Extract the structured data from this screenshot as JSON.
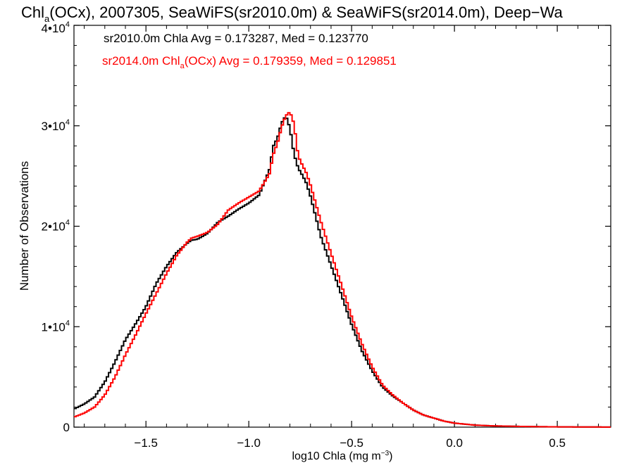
{
  "chart_data": {
    "type": "line",
    "title": {
      "pre": "Chl",
      "sub": "a",
      "post": "(OCx), 2007305, SeaWiFS(sr2010.0m) & SeaWiFS(sr2014.0m), Deep−Wa"
    },
    "xlabel": {
      "pre": "log10 Chla (mg m",
      "sup": "−3",
      "post": ")"
    },
    "ylabel": "Number of Observations",
    "xlim": [
      -1.85,
      0.76
    ],
    "ylim": [
      0,
      40000
    ],
    "x_ticks": [
      {
        "value": -1.5,
        "label": "−1.5"
      },
      {
        "value": -1.0,
        "label": "−1.0"
      },
      {
        "value": -0.5,
        "label": "−0.5"
      },
      {
        "value": 0.0,
        "label": "0.0"
      },
      {
        "value": 0.5,
        "label": "0.5"
      }
    ],
    "y_ticks": [
      {
        "value": 0,
        "base": "0",
        "exp": ""
      },
      {
        "value": 10000,
        "base": "1•10",
        "exp": "4"
      },
      {
        "value": 20000,
        "base": "2•10",
        "exp": "4"
      },
      {
        "value": 30000,
        "base": "3•10",
        "exp": "4"
      },
      {
        "value": 40000,
        "base": "4•10",
        "exp": "4"
      }
    ],
    "grid": false,
    "legend": [
      {
        "text": "sr2010.0m Chla Avg = 0.173287, Med = 0.123770",
        "color": "#000000"
      },
      {
        "pre": "sr2014.0m Chl",
        "sub": "a",
        "post": "(OCx) Avg = 0.179359, Med = 0.129851",
        "color": "#ff0000"
      }
    ],
    "series": [
      {
        "color": "#000000",
        "step": true,
        "x": [
          -1.85,
          -1.8,
          -1.75,
          -1.7,
          -1.65,
          -1.6,
          -1.55,
          -1.5,
          -1.45,
          -1.4,
          -1.35,
          -1.3,
          -1.28,
          -1.25,
          -1.2,
          -1.15,
          -1.1,
          -1.05,
          -1.0,
          -0.95,
          -0.9,
          -0.88,
          -0.86,
          -0.84,
          -0.82,
          -0.8,
          -0.78,
          -0.76,
          -0.74,
          -0.72,
          -0.7,
          -0.65,
          -0.6,
          -0.55,
          -0.5,
          -0.45,
          -0.4,
          -0.35,
          -0.3,
          -0.25,
          -0.2,
          -0.15,
          -0.1,
          -0.05,
          0.0,
          0.05,
          0.1,
          0.2,
          0.3,
          0.4,
          0.5,
          0.6,
          0.76
        ],
        "y": [
          1800,
          2300,
          3000,
          4500,
          6500,
          8700,
          10300,
          12000,
          14300,
          16000,
          17400,
          18300,
          18600,
          18700,
          19300,
          20400,
          21000,
          21700,
          22300,
          23100,
          25600,
          28000,
          28800,
          30300,
          31000,
          29800,
          27200,
          25800,
          25100,
          24300,
          23000,
          19000,
          16100,
          13200,
          10200,
          7600,
          5600,
          4000,
          3100,
          2400,
          1700,
          1200,
          900,
          600,
          400,
          300,
          200,
          120,
          80,
          50,
          30,
          20,
          10
        ]
      },
      {
        "color": "#ff0000",
        "step": true,
        "x": [
          -1.85,
          -1.8,
          -1.75,
          -1.7,
          -1.65,
          -1.6,
          -1.55,
          -1.5,
          -1.45,
          -1.4,
          -1.35,
          -1.3,
          -1.28,
          -1.25,
          -1.2,
          -1.15,
          -1.1,
          -1.05,
          -1.0,
          -0.95,
          -0.9,
          -0.88,
          -0.86,
          -0.84,
          -0.82,
          -0.8,
          -0.78,
          -0.76,
          -0.74,
          -0.72,
          -0.7,
          -0.65,
          -0.6,
          -0.55,
          -0.5,
          -0.45,
          -0.4,
          -0.35,
          -0.3,
          -0.25,
          -0.2,
          -0.15,
          -0.1,
          -0.05,
          0.0,
          0.05,
          0.1,
          0.2,
          0.3,
          0.4,
          0.5,
          0.6,
          0.76
        ],
        "y": [
          1000,
          1400,
          2000,
          3200,
          5000,
          7200,
          9200,
          11300,
          13300,
          15300,
          17100,
          18400,
          18800,
          19000,
          19400,
          20200,
          21600,
          22300,
          22900,
          23500,
          25200,
          27200,
          28300,
          29900,
          31000,
          31400,
          30200,
          27000,
          26100,
          25300,
          24100,
          20500,
          17300,
          14200,
          11000,
          8300,
          6000,
          4200,
          3200,
          2400,
          1700,
          1200,
          900,
          600,
          400,
          300,
          200,
          120,
          80,
          50,
          30,
          20,
          10
        ]
      }
    ]
  }
}
